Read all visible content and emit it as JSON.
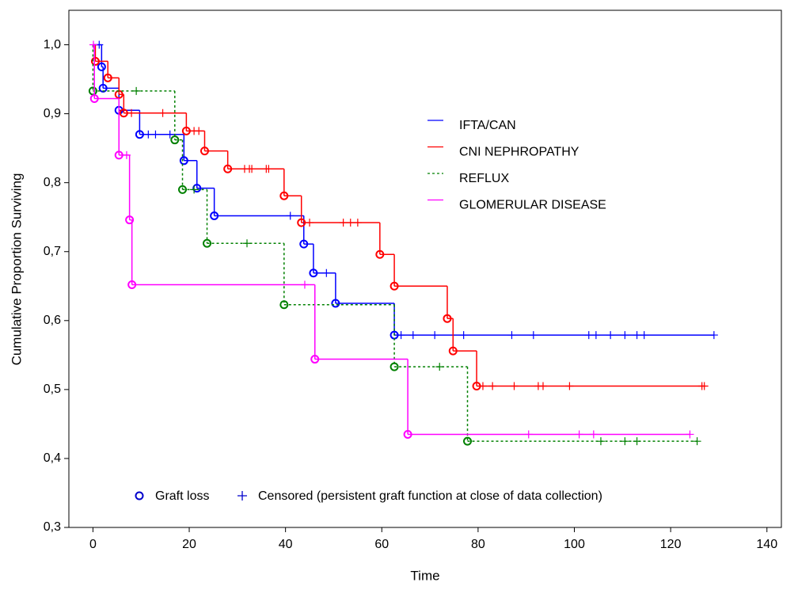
{
  "chart_data": {
    "type": "step",
    "x_label": "Time",
    "y_label": "Cumulative Proportion Surviving",
    "xlim": [
      -5,
      143
    ],
    "ylim": [
      0.3,
      1.05
    ],
    "xticks": [
      0,
      20,
      40,
      60,
      80,
      100,
      120,
      140
    ],
    "yticks": [
      {
        "value": 0.3,
        "label": "0,3"
      },
      {
        "value": 0.4,
        "label": "0,4"
      },
      {
        "value": 0.5,
        "label": "0,5"
      },
      {
        "value": 0.6,
        "label": "0,6"
      },
      {
        "value": 0.7,
        "label": "0,7"
      },
      {
        "value": 0.8,
        "label": "0,8"
      },
      {
        "value": 0.9,
        "label": "0,9"
      },
      {
        "value": 1.0,
        "label": "1,0"
      }
    ],
    "grid": false,
    "event_label": "Graft loss",
    "censor_label": "Censored (persistent graft function at close of data collection)",
    "series": [
      {
        "name": "IFTA/CAN",
        "color": "#0000ff",
        "dash": "none",
        "x": [
          0,
          1.8,
          2.1,
          5.4,
          9.7,
          18.9,
          21.6,
          25.2,
          43.8,
          45.8,
          50.4,
          62.6
        ],
        "values": [
          1.0,
          0.968,
          0.937,
          0.905,
          0.87,
          0.832,
          0.792,
          0.752,
          0.711,
          0.669,
          0.625,
          0.579
        ],
        "censored": [
          1.3,
          11.5,
          13,
          16,
          41,
          48.5,
          64,
          66.5,
          71,
          77,
          87,
          91.5,
          103,
          104.5,
          107.5,
          110.5,
          113,
          114.5,
          129
        ]
      },
      {
        "name": "CNI NEPHROPATHY",
        "color": "#ff0000",
        "dash": "none",
        "x": [
          0,
          0.5,
          3.1,
          5.4,
          6.4,
          19.4,
          23.2,
          28.0,
          39.7,
          43.3,
          59.6,
          62.6,
          73.6,
          74.8,
          79.7
        ],
        "values": [
          1.0,
          0.976,
          0.952,
          0.928,
          0.901,
          0.875,
          0.846,
          0.82,
          0.781,
          0.742,
          0.696,
          0.65,
          0.603,
          0.556,
          0.505
        ],
        "censored": [
          8,
          14.5,
          21,
          22,
          31.5,
          32.5,
          33,
          36,
          36.5,
          45,
          52,
          53.5,
          55,
          81,
          83,
          87.5,
          92.5,
          93.5,
          99,
          126.5,
          127
        ]
      },
      {
        "name": "REFLUX",
        "color": "#008000",
        "dash": "3,3",
        "x": [
          0,
          0,
          17.0,
          18.6,
          23.7,
          39.7,
          62.6,
          77.8
        ],
        "values": [
          1.0,
          0.933,
          0.862,
          0.79,
          0.712,
          0.623,
          0.533,
          0.425
        ],
        "censored": [
          9,
          21,
          32,
          72,
          105.5,
          110.5,
          113,
          125.5
        ]
      },
      {
        "name": "GLOMERULAR DISEASE",
        "color": "#ff00ff",
        "dash": "none",
        "x": [
          0,
          0.3,
          5.4,
          7.6,
          8.1,
          46.1,
          65.4
        ],
        "values": [
          1.0,
          0.922,
          0.84,
          0.746,
          0.652,
          0.544,
          0.435
        ],
        "censored": [
          0.1,
          7,
          44,
          90.5,
          101,
          104,
          124
        ]
      }
    ]
  }
}
